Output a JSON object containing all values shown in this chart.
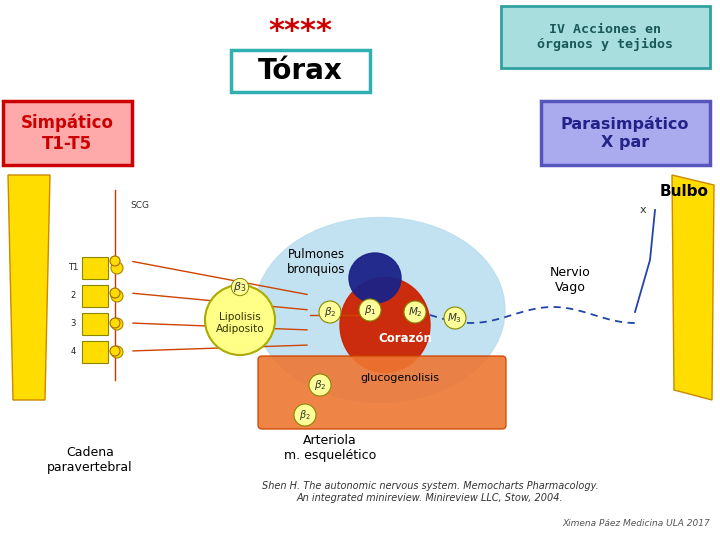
{
  "bg_color": "#ffffff",
  "title_stars": "****",
  "title_stars_color": "#cc0000",
  "title_stars_fontsize": 22,
  "subtitle": "Tórax",
  "subtitle_fontsize": 20,
  "subtitle_box_color": "#30b0b0",
  "subtitle_text_color": "#000000",
  "iv_box_text": "IV Acciones en\nórganos y tejidos",
  "iv_box_bg": "#a8dede",
  "iv_box_edge": "#30a0a0",
  "iv_text_color": "#1a5858",
  "simpatico_text": "Simpático\nT1-T5",
  "simpatico_bg": "#ffaaaa",
  "simpatico_edge": "#cc0000",
  "simpatico_text_color": "#cc0000",
  "parasimpatico_text": "Parasimpático\nX par",
  "parasimpatico_bg": "#aaaaee",
  "parasimpatico_edge": "#5555bb",
  "parasimpatico_text_color": "#222288",
  "bulbo_text": "Bulbo",
  "bulbo_color": "#000000",
  "nervio_vago_text": "Nervio\nVago",
  "nervio_vago_color": "#000000",
  "pulmones_text": "Pulmones\nbronquios",
  "corazon_text": "Corazón",
  "glucogenolisis_text": "glucogenolisis",
  "lipolisis_text": "Lipolisis\nAdiposito",
  "arteriola_text": "Arteriola\nm. esquelético",
  "cadena_text": "Cadena\nparavertebral",
  "scg_text": "SCG",
  "reference_text": "Shen H. The autonomic nervous system. Memocharts Pharmacology.\nAn integrated minireview. Minireview LLC, Stow, 2004.",
  "author_text": "Ximena Páez Medicina ULA 2017",
  "annotation_color": "#000000"
}
